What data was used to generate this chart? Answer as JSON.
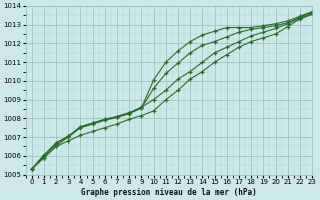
{
  "title": "Graphe pression niveau de la mer (hPa)",
  "xlim": [
    -0.5,
    23
  ],
  "ylim": [
    1005,
    1014
  ],
  "xticks": [
    0,
    1,
    2,
    3,
    4,
    5,
    6,
    7,
    8,
    9,
    10,
    11,
    12,
    13,
    14,
    15,
    16,
    17,
    18,
    19,
    20,
    21,
    22,
    23
  ],
  "yticks": [
    1005,
    1006,
    1007,
    1008,
    1009,
    1010,
    1011,
    1012,
    1013,
    1014
  ],
  "bg_color": "#cce8e8",
  "grid_major_color": "#99bbbb",
  "line_color1": "#2d6b2d",
  "line_color2": "#2d6b2d",
  "line_color3": "#2d6b2d",
  "line_color4": "#2d6b2d",
  "series1": [
    1005.3,
    1005.9,
    1006.5,
    1006.8,
    1007.1,
    1007.3,
    1007.5,
    1007.7,
    1007.95,
    1008.15,
    1008.4,
    1009.0,
    1009.5,
    1010.1,
    1010.5,
    1011.0,
    1011.4,
    1011.8,
    1012.1,
    1012.3,
    1012.5,
    1012.9,
    1013.3,
    1013.55
  ],
  "series2": [
    1005.3,
    1006.0,
    1006.65,
    1007.05,
    1007.55,
    1007.75,
    1007.95,
    1008.1,
    1008.3,
    1008.6,
    1009.0,
    1009.5,
    1010.1,
    1010.5,
    1011.0,
    1011.5,
    1011.8,
    1012.1,
    1012.4,
    1012.6,
    1012.8,
    1013.05,
    1013.35,
    1013.6
  ],
  "series3": [
    1005.3,
    1005.9,
    1006.55,
    1007.0,
    1007.5,
    1007.7,
    1007.9,
    1008.05,
    1008.25,
    1008.55,
    1009.6,
    1010.4,
    1010.95,
    1011.5,
    1011.9,
    1012.1,
    1012.35,
    1012.6,
    1012.75,
    1012.85,
    1012.95,
    1013.1,
    1013.4,
    1013.65
  ],
  "series4": [
    1005.3,
    1006.05,
    1006.7,
    1007.05,
    1007.55,
    1007.75,
    1007.95,
    1008.1,
    1008.3,
    1008.55,
    1010.05,
    1011.0,
    1011.6,
    1012.1,
    1012.45,
    1012.65,
    1012.85,
    1012.85,
    1012.85,
    1012.95,
    1013.05,
    1013.2,
    1013.45,
    1013.7
  ]
}
